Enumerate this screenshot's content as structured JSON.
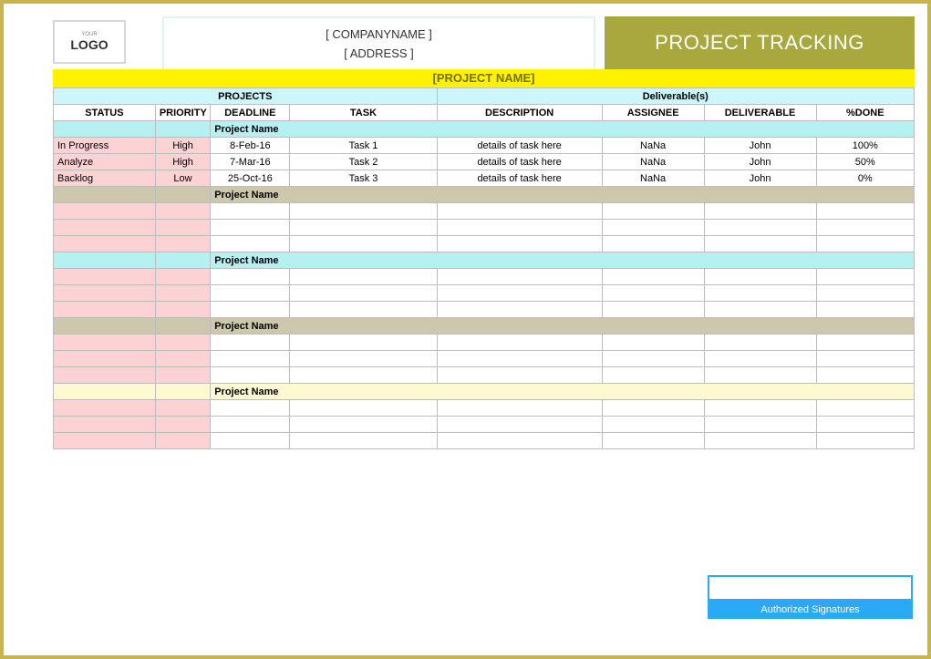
{
  "header": {
    "logo_small": "YOUR",
    "logo_text": "LOGO",
    "company_name": "[ COMPANYNAME ]",
    "address": "[ ADDRESS ]",
    "tracking_title": "PROJECT TRACKING"
  },
  "project_name_bar": "[PROJECT NAME]",
  "sections": {
    "left_title": "PROJECTS",
    "right_title": "Deliverable(s)"
  },
  "columns": {
    "status": "STATUS",
    "priority": "PRIORITY",
    "deadline": "DEADLINE",
    "task": "TASK",
    "description": "DESCRIPTION",
    "assignee": "ASSIGNEE",
    "deliverable": "DELIVERABLE",
    "pctdone": "%DONE"
  },
  "column_widths": {
    "status": 100,
    "priority": 54,
    "deadline": 78,
    "task": 144,
    "description": 162,
    "assignee": 100,
    "deliverable": 110,
    "pctdone": 96
  },
  "groups": [
    {
      "label": "Project Name",
      "style": "blue",
      "rows": [
        {
          "status": "In Progress",
          "priority": "High",
          "deadline": "8-Feb-16",
          "task": "Task 1",
          "description": "details of task here",
          "assignee": "NaNa",
          "deliverable": "John",
          "pctdone": "100%"
        },
        {
          "status": "Analyze",
          "priority": "High",
          "deadline": "7-Mar-16",
          "task": "Task 2",
          "description": "details of task here",
          "assignee": "NaNa",
          "deliverable": "John",
          "pctdone": "50%"
        },
        {
          "status": "Backlog",
          "priority": "Low",
          "deadline": "25-Oct-16",
          "task": "Task 3",
          "description": "details of task here",
          "assignee": "NaNa",
          "deliverable": "John",
          "pctdone": "0%"
        }
      ]
    },
    {
      "label": "Project Name",
      "style": "tan",
      "rows": [
        {},
        {},
        {}
      ]
    },
    {
      "label": "Project Name",
      "style": "blue",
      "rows": [
        {},
        {},
        {}
      ]
    },
    {
      "label": "Project Name",
      "style": "tan",
      "rows": [
        {},
        {},
        {}
      ]
    },
    {
      "label": "Project Name",
      "style": "yellow",
      "rows": [
        {},
        {},
        {}
      ]
    }
  ],
  "signature_label": "Authorized Signatures",
  "colors": {
    "border_outer": "#c9b648",
    "yellow_bar": "#fff201",
    "section_bg": "#cbf6fa",
    "pink": "#fcd2d4",
    "group_blue": "#b6f1f1",
    "group_tan": "#cdc8ab",
    "group_yellow": "#fff9d2",
    "olive": "#a9a83e",
    "sig_blue": "#2aa9f5",
    "grid": "#bdbdbd"
  }
}
